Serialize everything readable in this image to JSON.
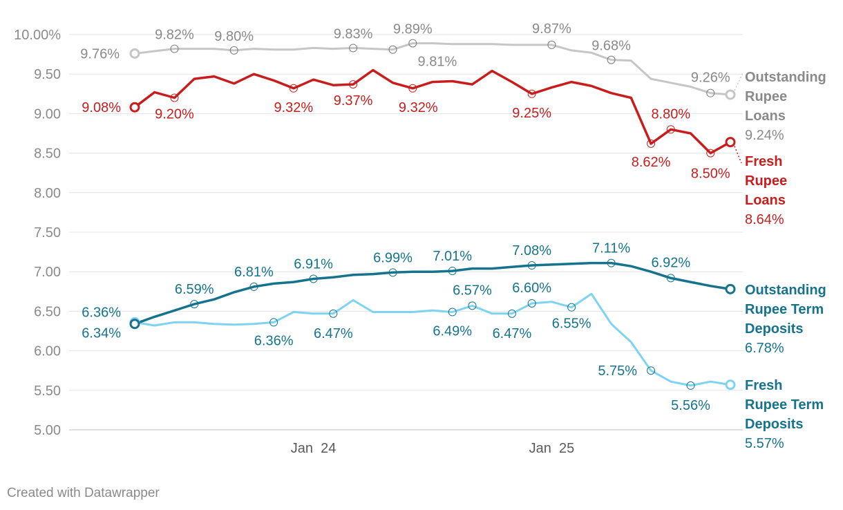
{
  "footer": {
    "credit": "Created with Datawrapper"
  },
  "chart_data": {
    "type": "line",
    "title": "",
    "xlabel": "",
    "ylabel": "",
    "ylim": [
      5.0,
      10.0
    ],
    "y_ticks": [
      {
        "value": 10.0,
        "label": "10.00%"
      },
      {
        "value": 9.5,
        "label": "9.50"
      },
      {
        "value": 9.0,
        "label": "9.00"
      },
      {
        "value": 8.5,
        "label": "8.50"
      },
      {
        "value": 8.0,
        "label": "8.00"
      },
      {
        "value": 7.5,
        "label": "7.50"
      },
      {
        "value": 7.0,
        "label": "7.00"
      },
      {
        "value": 6.5,
        "label": "6.50"
      },
      {
        "value": 6.0,
        "label": "6.00"
      },
      {
        "value": 5.5,
        "label": "5.50"
      },
      {
        "value": 5.0,
        "label": "5.00"
      }
    ],
    "x": [
      "Apr 2023",
      "May 2023",
      "Jun 2023",
      "Jul 2023",
      "Aug 2023",
      "Sep 2023",
      "Oct 2023",
      "Nov 2023",
      "Dec 2023",
      "Jan 2024",
      "Feb 2024",
      "Mar 2024",
      "Apr 2024",
      "May 2024",
      "Jun 2024",
      "Jul 2024",
      "Aug 2024",
      "Sep 2024",
      "Oct 2024",
      "Nov 2024",
      "Dec 2024",
      "Jan 2025",
      "Feb 2025",
      "Mar 2025",
      "Apr 2025",
      "May 2025",
      "Jun 2025",
      "Jul 2025",
      "Aug 2025",
      "Sep 2025",
      "Oct 2025"
    ],
    "x_ticks": [
      {
        "index": 9,
        "label": "Jan  24"
      },
      {
        "index": 21,
        "label": "Jan  25"
      }
    ],
    "grid": true,
    "legend": "direct-labels-right",
    "series": [
      {
        "name": "Outstanding Rupee Loans",
        "end_label": "9.24%",
        "color": "#c6c6c6",
        "label_color": "#8a8a8a",
        "values": [
          9.76,
          9.79,
          9.82,
          9.82,
          9.82,
          9.8,
          9.82,
          9.81,
          9.81,
          9.83,
          9.82,
          9.83,
          9.82,
          9.81,
          9.89,
          9.89,
          9.88,
          9.88,
          9.88,
          9.87,
          9.87,
          9.87,
          9.8,
          9.77,
          9.68,
          9.67,
          9.44,
          9.39,
          9.34,
          9.26,
          9.24
        ],
        "labels": [
          {
            "index": 0,
            "text": "9.76%"
          },
          {
            "index": 2,
            "text": "9.82%"
          },
          {
            "index": 5,
            "text": "9.80%"
          },
          {
            "index": 11,
            "text": "9.83%"
          },
          {
            "index": 13,
            "text": "9.81%"
          },
          {
            "index": 14,
            "text": "9.89%"
          },
          {
            "index": 21,
            "text": "9.87%"
          },
          {
            "index": 24,
            "text": "9.68%"
          },
          {
            "index": 29,
            "text": "9.26%"
          }
        ]
      },
      {
        "name": "Fresh Rupee Loans",
        "end_label": "8.64%",
        "color": "#c71e1d",
        "label_color": "#c71e1d",
        "values": [
          9.08,
          9.27,
          9.2,
          9.44,
          9.47,
          9.38,
          9.5,
          9.42,
          9.32,
          9.43,
          9.36,
          9.37,
          9.55,
          9.39,
          9.32,
          9.4,
          9.41,
          9.37,
          9.54,
          9.4,
          9.25,
          9.33,
          9.4,
          9.35,
          9.26,
          9.2,
          8.62,
          8.8,
          8.75,
          8.5,
          8.64
        ],
        "labels": [
          {
            "index": 0,
            "text": "9.08%"
          },
          {
            "index": 2,
            "text": "9.20%"
          },
          {
            "index": 8,
            "text": "9.32%"
          },
          {
            "index": 11,
            "text": "9.37%"
          },
          {
            "index": 14,
            "text": "9.32%"
          },
          {
            "index": 20,
            "text": "9.25%"
          },
          {
            "index": 26,
            "text": "8.62%"
          },
          {
            "index": 27,
            "text": "8.80%"
          },
          {
            "index": 29,
            "text": "8.50%"
          }
        ]
      },
      {
        "name": "Outstanding Rupee Term Deposits",
        "end_label": "6.78%",
        "color": "#15738d",
        "label_color": "#15738d",
        "values": [
          6.34,
          6.43,
          6.51,
          6.59,
          6.65,
          6.74,
          6.81,
          6.85,
          6.87,
          6.91,
          6.93,
          6.96,
          6.97,
          6.99,
          7.0,
          7.0,
          7.01,
          7.04,
          7.04,
          7.06,
          7.08,
          7.09,
          7.1,
          7.11,
          7.11,
          7.07,
          7.0,
          6.92,
          6.87,
          6.82,
          6.78
        ],
        "labels": [
          {
            "index": 0,
            "text": "6.34%"
          },
          {
            "index": 3,
            "text": "6.59%"
          },
          {
            "index": 6,
            "text": "6.81%"
          },
          {
            "index": 9,
            "text": "6.91%"
          },
          {
            "index": 13,
            "text": "6.99%"
          },
          {
            "index": 16,
            "text": "7.01%"
          },
          {
            "index": 20,
            "text": "7.08%"
          },
          {
            "index": 24,
            "text": "7.11%"
          },
          {
            "index": 27,
            "text": "6.92%"
          }
        ]
      },
      {
        "name": "Fresh Rupee Term Deposits",
        "end_label": "5.57%",
        "color": "#7fd3f0",
        "label_color": "#15738d",
        "values": [
          6.36,
          6.32,
          6.36,
          6.36,
          6.34,
          6.33,
          6.34,
          6.36,
          6.49,
          6.47,
          6.47,
          6.64,
          6.49,
          6.49,
          6.49,
          6.51,
          6.49,
          6.57,
          6.47,
          6.47,
          6.6,
          6.62,
          6.55,
          6.72,
          6.34,
          6.11,
          5.75,
          5.61,
          5.56,
          5.61,
          5.57
        ],
        "labels": [
          {
            "index": 0,
            "text": "6.36%"
          },
          {
            "index": 7,
            "text": "6.36%"
          },
          {
            "index": 10,
            "text": "6.47%"
          },
          {
            "index": 16,
            "text": "6.49%"
          },
          {
            "index": 17,
            "text": "6.57%"
          },
          {
            "index": 19,
            "text": "6.47%"
          },
          {
            "index": 20,
            "text": "6.60%"
          },
          {
            "index": 22,
            "text": "6.55%"
          },
          {
            "index": 26,
            "text": "5.75%"
          },
          {
            "index": 28,
            "text": "5.56%"
          }
        ]
      }
    ]
  }
}
